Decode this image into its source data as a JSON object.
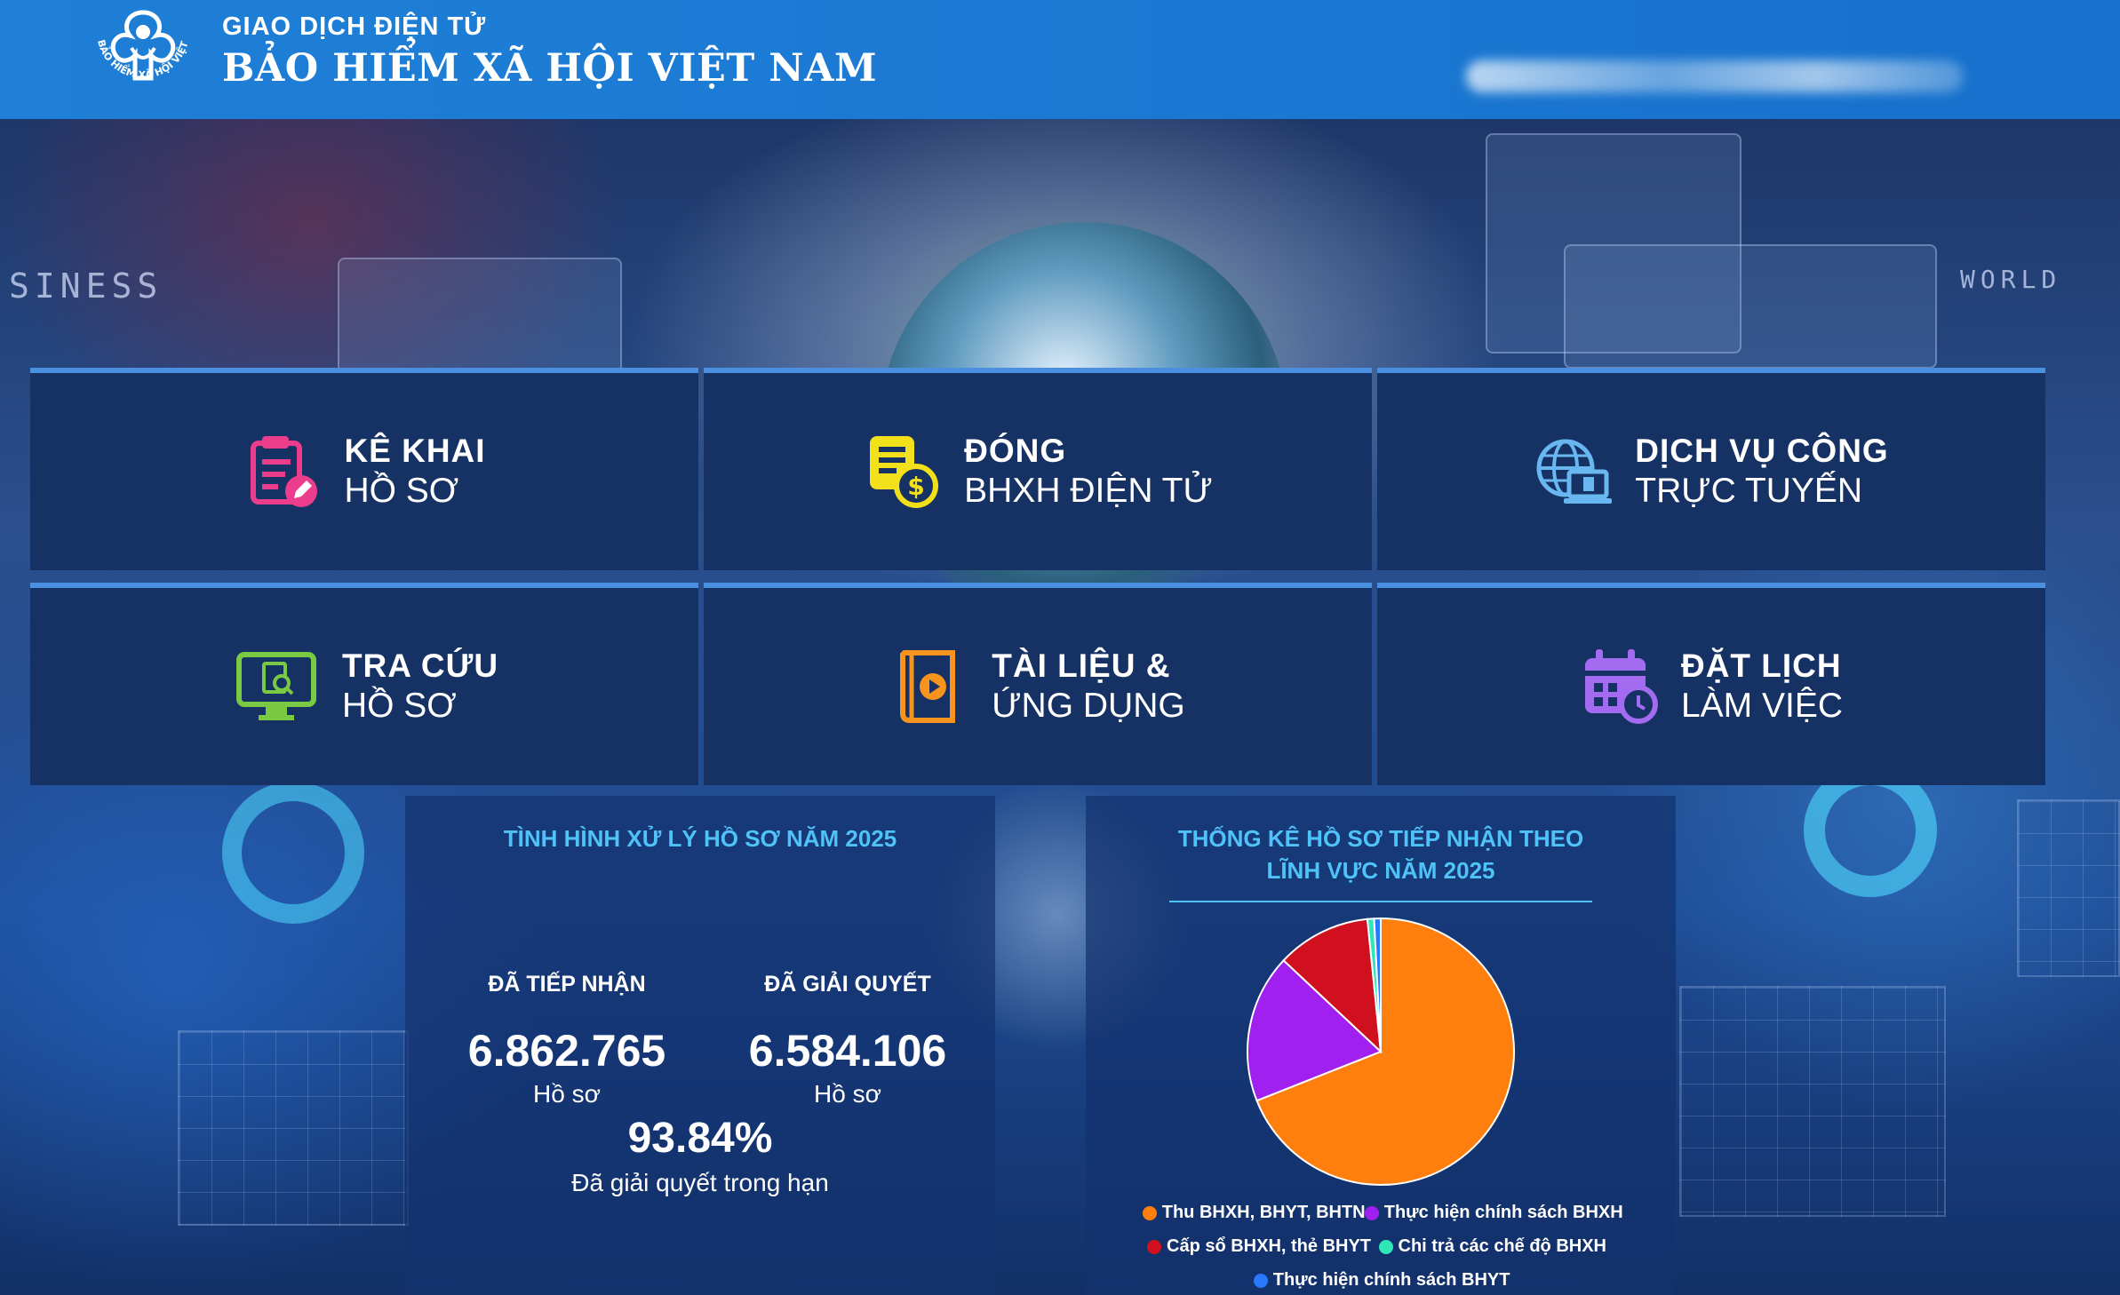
{
  "header": {
    "brand_sub": "GIAO DỊCH ĐIỆN TỬ",
    "brand_main": "BẢO HIỂM XÃ HỘI VIỆT NAM",
    "logo_ring_text": "BẢO HIỂM XÃ HỘI VIỆT NAM"
  },
  "background": {
    "words": [
      "SINESS",
      "WORLD",
      "WORLD"
    ]
  },
  "tiles": [
    {
      "line1": "KÊ KHAI",
      "line2": "HỒ SƠ",
      "icon": "document-edit-icon",
      "color": "#ec3d8c"
    },
    {
      "line1": "ĐÓNG",
      "line2": "BHXH ĐIỆN TỬ",
      "icon": "payment-dollar-icon",
      "color": "#f2e01a"
    },
    {
      "line1": "DỊCH VỤ CÔNG",
      "line2": "TRỰC TUYẾN",
      "icon": "globe-laptop-icon",
      "color": "#69b7f0"
    },
    {
      "line1": "TRA CỨU",
      "line2": "HỒ SƠ",
      "icon": "monitor-search-icon",
      "color": "#7ac943"
    },
    {
      "line1": "TÀI LIỆU &",
      "line2": "ỨNG DỤNG",
      "icon": "book-play-icon",
      "color": "#f7941d"
    },
    {
      "line1": "ĐẶT LỊCH",
      "line2": "LÀM VIỆC",
      "icon": "calendar-clock-icon",
      "color": "#a26bf0"
    }
  ],
  "processing": {
    "title": "TÌNH HÌNH XỬ LÝ HỒ SƠ NĂM 2025",
    "received_label": "ĐÃ TIẾP NHẬN",
    "received_value": "6.862.765",
    "received_unit": "Hồ sơ",
    "resolved_label": "ĐÃ GIẢI QUYẾT",
    "resolved_value": "6.584.106",
    "resolved_unit": "Hồ sơ",
    "ontime_percent": "93.84%",
    "ontime_label": "Đã giải quyết trong hạn"
  },
  "chart_data": {
    "type": "pie",
    "title": "THỐNG KÊ HỒ SƠ TIẾP NHẬN THEO LĨNH VỰC NĂM 2025",
    "legend_position": "bottom",
    "slices": [
      {
        "label": "Thu BHXH, BHYT, BHTN",
        "value": 69.0,
        "color": "#ff7f0e"
      },
      {
        "label": "Thực hiện chính sách BHXH",
        "value": 18.0,
        "color": "#a020f0"
      },
      {
        "label": "Cấp sổ BHXH, thẻ BHYT",
        "value": 11.4,
        "color": "#d0101e"
      },
      {
        "label": "Chi trả các chế độ BHXH",
        "value": 0.8,
        "color": "#2ee6b6"
      },
      {
        "label": "Thực hiện chính sách BHYT",
        "value": 0.8,
        "color": "#2979ff"
      }
    ]
  }
}
